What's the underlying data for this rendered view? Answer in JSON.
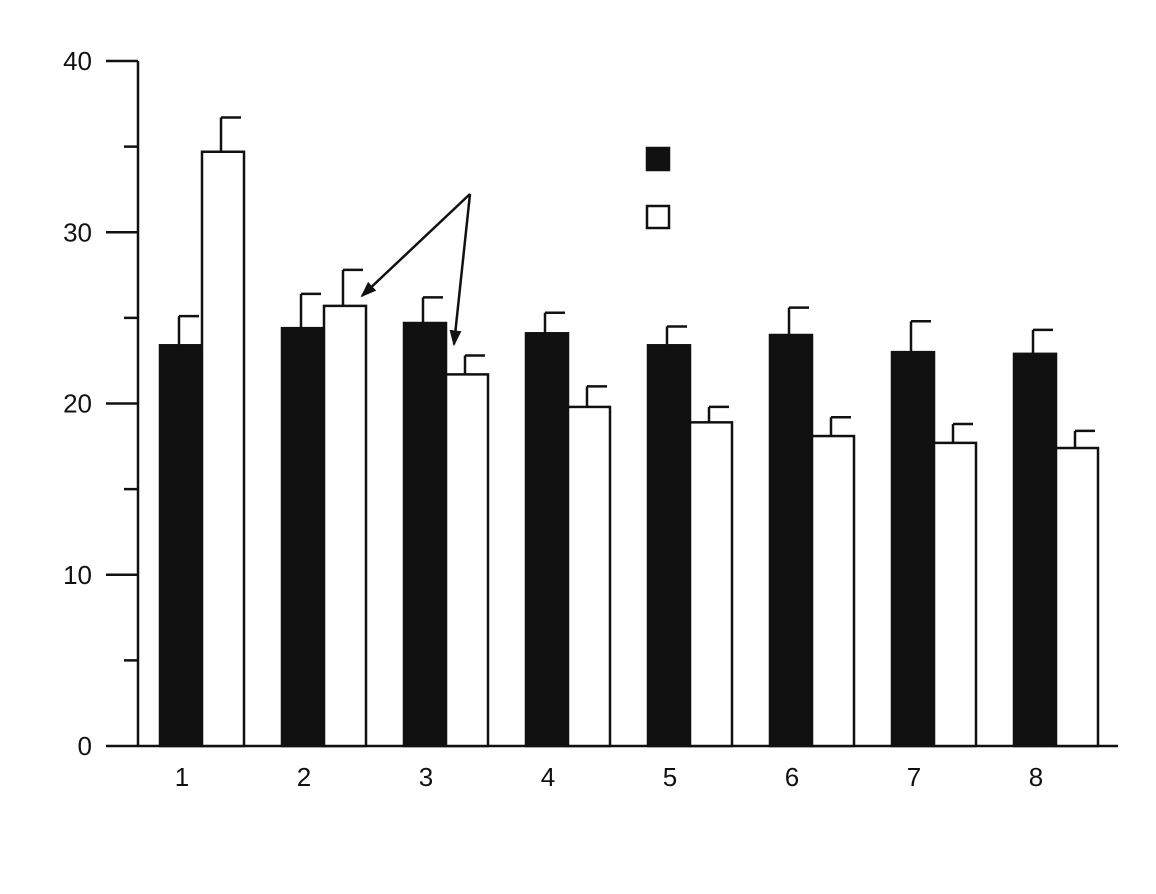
{
  "chart_data": {
    "type": "bar",
    "title": "",
    "xlabel": "",
    "ylabel": "",
    "categories": [
      "1",
      "2",
      "3",
      "4",
      "5",
      "6",
      "7",
      "8"
    ],
    "ylim": [
      0,
      40
    ],
    "yticks_major": [
      "0",
      "10",
      "20",
      "30",
      "40"
    ],
    "yticks_minor": [
      5,
      15,
      25,
      35
    ],
    "grid": false,
    "legend_position": "top-center",
    "series": [
      {
        "fill": "#111111",
        "values": [
          23.4,
          24.4,
          24.7,
          24.1,
          23.4,
          24.0,
          23.0,
          22.9
        ],
        "error": [
          1.7,
          2.0,
          1.5,
          1.2,
          1.1,
          1.6,
          1.8,
          1.4
        ]
      },
      {
        "fill": "#ffffff",
        "values": [
          34.7,
          25.7,
          21.7,
          19.8,
          18.9,
          18.1,
          17.7,
          17.4
        ],
        "error": [
          2.0,
          2.1,
          1.1,
          1.2,
          0.9,
          1.1,
          1.1,
          1.0
        ]
      }
    ],
    "annotations": [
      {
        "type": "arrows",
        "points_to": [
          {
            "series": 1,
            "category": "2"
          },
          {
            "series": 1,
            "category": "3"
          }
        ]
      }
    ]
  }
}
